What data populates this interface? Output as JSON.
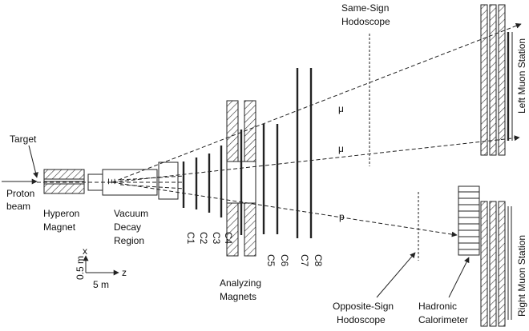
{
  "labels": {
    "target": "Target",
    "proton_1": "Proton",
    "proton_2": "beam",
    "hyperon_1": "Hyperon",
    "hyperon_2": "Magnet",
    "vacuum_1": "Vacuum",
    "vacuum_2": "Decay",
    "vacuum_3": "Region",
    "xi": "Ξ",
    "chambers": [
      "C1",
      "C2",
      "C3",
      "C4",
      "C5",
      "C6",
      "C7",
      "C8"
    ],
    "analyzing_1": "Analyzing",
    "analyzing_2": "Magnets",
    "same_sign_1": "Same-Sign",
    "same_sign_2": "Hodoscope",
    "muon1": "μ",
    "muon2": "μ",
    "proton_track": "p",
    "left_muon": "Left Muon Station",
    "right_muon": "Right Muon Station",
    "opp_sign_1": "Opposite-Sign",
    "opp_sign_2": "Hodoscope",
    "hadronic_1": "Hadronic",
    "hadronic_2": "Calorimeter",
    "scale_x": "0.5 m",
    "scale_z": "5 m",
    "axis_x": "x",
    "axis_z": "z"
  }
}
